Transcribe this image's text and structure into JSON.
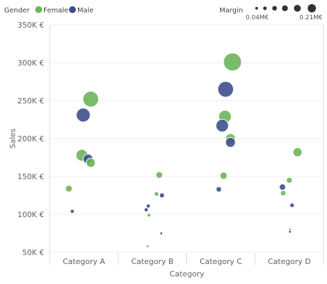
{
  "chart_data": {
    "type": "scatter",
    "xlabel": "Category",
    "ylabel": "Sales",
    "categories": [
      "Category A",
      "Category B",
      "Category C",
      "Category D"
    ],
    "y_ticks": [
      "50K €",
      "100K €",
      "150K €",
      "200K €",
      "250K €",
      "300K €",
      "350K €"
    ],
    "ylim": [
      50000,
      350000
    ],
    "grid": true,
    "legend": {
      "title": "Gender",
      "items": [
        {
          "name": "Female",
          "color": "#6DB55A"
        },
        {
          "name": "Male",
          "color": "#3F4F8F"
        }
      ],
      "placement": "top-left"
    },
    "size_legend": {
      "title": "Margin",
      "min_label": "0.04M€",
      "max_label": "0.21M€",
      "min": 0.04,
      "max": 0.21
    },
    "series": [
      {
        "name": "Female",
        "color": "#6DB55A",
        "points": [
          {
            "category": "Category A",
            "offset": 0.1,
            "sales": 252000,
            "margin": 0.185
          },
          {
            "category": "Category A",
            "offset": -0.03,
            "sales": 178000,
            "margin": 0.14
          },
          {
            "category": "Category A",
            "offset": 0.1,
            "sales": 168000,
            "margin": 0.11
          },
          {
            "category": "Category A",
            "offset": -0.22,
            "sales": 134000,
            "margin": 0.085
          },
          {
            "category": "Category B",
            "offset": 0.1,
            "sales": 152000,
            "margin": 0.085
          },
          {
            "category": "Category B",
            "offset": 0.06,
            "sales": 127000,
            "margin": 0.06
          },
          {
            "category": "Category B",
            "offset": -0.05,
            "sales": 99000,
            "margin": 0.05
          },
          {
            "category": "Category B",
            "offset": -0.07,
            "sales": 58000,
            "margin": 0.035
          },
          {
            "category": "Category C",
            "offset": 0.17,
            "sales": 301000,
            "margin": 0.21
          },
          {
            "category": "Category C",
            "offset": 0.06,
            "sales": 229000,
            "margin": 0.15
          },
          {
            "category": "Category C",
            "offset": 0.14,
            "sales": 200000,
            "margin": 0.12
          },
          {
            "category": "Category C",
            "offset": 0.04,
            "sales": 151000,
            "margin": 0.09
          },
          {
            "category": "Category D",
            "offset": 0.12,
            "sales": 182000,
            "margin": 0.11
          },
          {
            "category": "Category D",
            "offset": 0.0,
            "sales": 145000,
            "margin": 0.075
          },
          {
            "category": "Category D",
            "offset": -0.09,
            "sales": 128000,
            "margin": 0.07
          },
          {
            "category": "Category D",
            "offset": 0.01,
            "sales": 80000,
            "margin": 0.04
          }
        ]
      },
      {
        "name": "Male",
        "color": "#3F4F8F",
        "points": [
          {
            "category": "Category A",
            "offset": -0.01,
            "sales": 231000,
            "margin": 0.165
          },
          {
            "category": "Category A",
            "offset": 0.06,
            "sales": 173000,
            "margin": 0.12
          },
          {
            "category": "Category A",
            "offset": -0.17,
            "sales": 104000,
            "margin": 0.055
          },
          {
            "category": "Category B",
            "offset": -0.06,
            "sales": 111000,
            "margin": 0.055
          },
          {
            "category": "Category B",
            "offset": -0.09,
            "sales": 106000,
            "margin": 0.055
          },
          {
            "category": "Category B",
            "offset": 0.14,
            "sales": 125000,
            "margin": 0.065
          },
          {
            "category": "Category B",
            "offset": 0.13,
            "sales": 75000,
            "margin": 0.035
          },
          {
            "category": "Category C",
            "offset": 0.07,
            "sales": 265000,
            "margin": 0.185
          },
          {
            "category": "Category C",
            "offset": 0.02,
            "sales": 217000,
            "margin": 0.15
          },
          {
            "category": "Category C",
            "offset": 0.14,
            "sales": 195000,
            "margin": 0.12
          },
          {
            "category": "Category C",
            "offset": -0.03,
            "sales": 133000,
            "margin": 0.07
          },
          {
            "category": "Category D",
            "offset": -0.1,
            "sales": 136000,
            "margin": 0.08
          },
          {
            "category": "Category D",
            "offset": 0.04,
            "sales": 112000,
            "margin": 0.06
          },
          {
            "category": "Category D",
            "offset": 0.01,
            "sales": 77000,
            "margin": 0.04
          }
        ]
      }
    ]
  }
}
